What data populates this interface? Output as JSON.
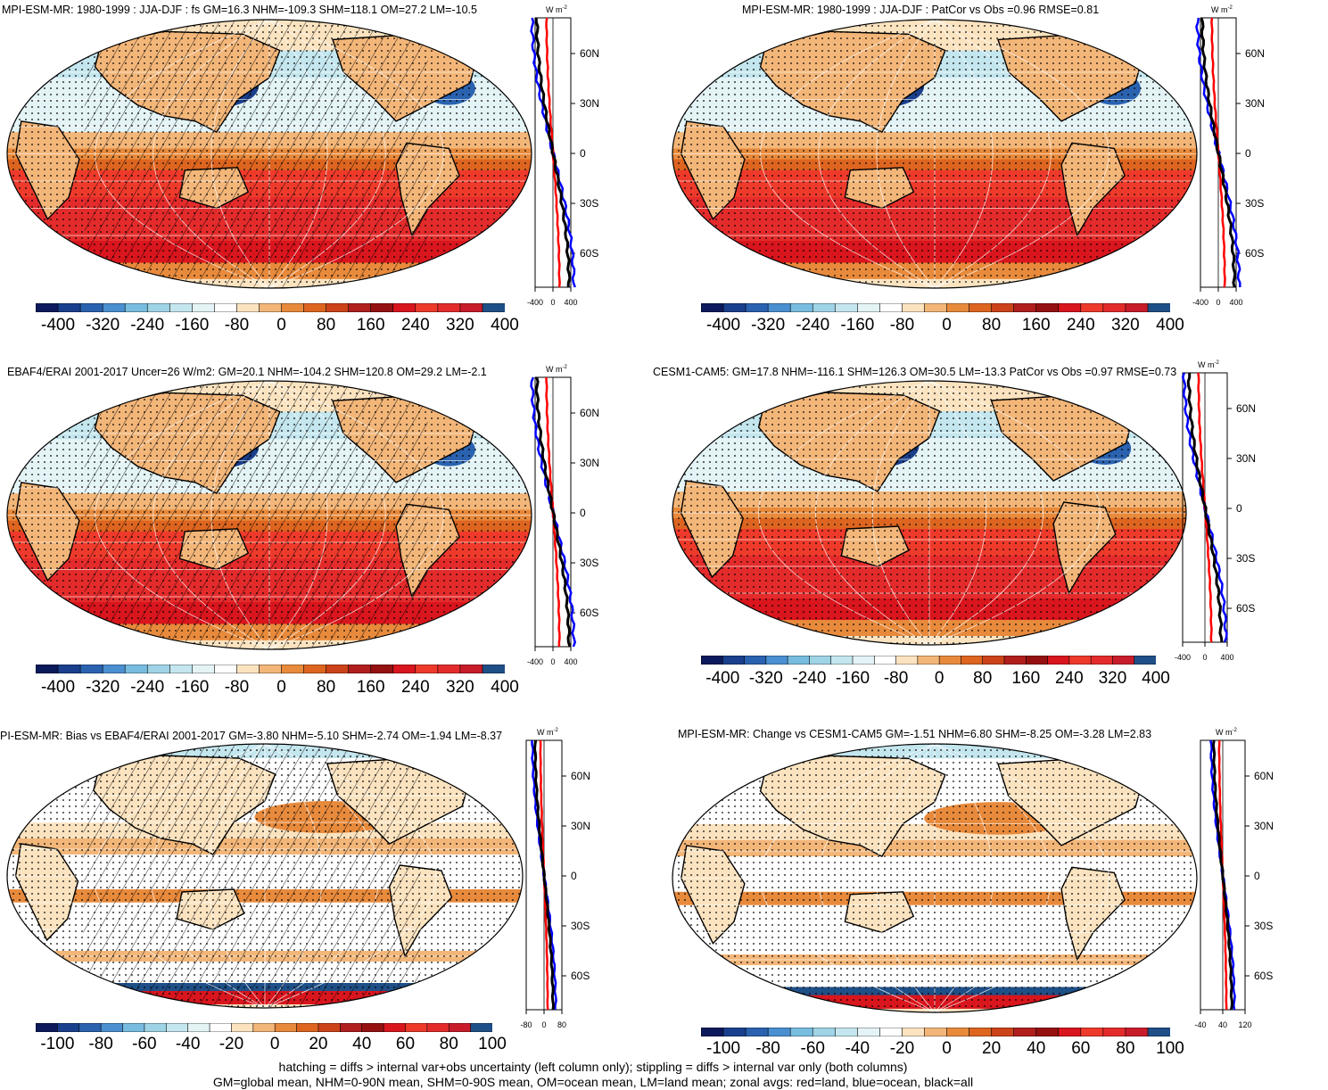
{
  "panels": [
    {
      "id": "p1",
      "title": "MPI-ESM-MR: 1980-1999 : JJA-DJF : fs GM=16.3 NHM=-109.3 SHM=118.1 OM=27.2 LM=-10.5",
      "scale": "big",
      "hatching": true,
      "zonal_ticks": [
        "-400",
        "0",
        "400"
      ]
    },
    {
      "id": "p2",
      "title": "MPI-ESM-MR: 1980-1999 : JJA-DJF : PatCor vs Obs =0.96 RMSE=0.81",
      "scale": "big",
      "hatching": false,
      "zonal_ticks": [
        "-400",
        "0",
        "400"
      ]
    },
    {
      "id": "p3",
      "title": "EBAF4/ERAI 2001-2017 Uncer=26 W/m2: GM=20.1 NHM=-104.2 SHM=120.8 OM=29.2 LM=-2.1",
      "scale": "big",
      "hatching": true,
      "zonal_ticks": [
        "-400",
        "0",
        "400"
      ]
    },
    {
      "id": "p4",
      "title": "CESM1-CAM5: GM=17.8 NHM=-116.1 SHM=126.3 OM=30.5 LM=-13.3 PatCor vs Obs =0.97 RMSE=0.73",
      "scale": "big",
      "hatching": false,
      "zonal_ticks": [
        "-400",
        "0",
        "400"
      ]
    },
    {
      "id": "p5",
      "title": "PI-ESM-MR: Bias vs EBAF4/ERAI 2001-2017 GM=-3.80 NHM=-5.10 SHM=-2.74 OM=-1.94 LM=-8.37",
      "scale": "small",
      "hatching": true,
      "zonal_ticks": [
        "-80",
        "0",
        "80"
      ]
    },
    {
      "id": "p6",
      "title": "MPI-ESM-MR: Change vs CESM1-CAM5 GM=-1.51 NHM=6.80 SHM=-8.25 OM=-3.28 LM=2.83",
      "scale": "small",
      "hatching": false,
      "zonal_ticks": [
        "-40",
        "40",
        "120"
      ]
    }
  ],
  "units_label": "W m",
  "units_exp": "-2",
  "lat_labels": [
    "60N",
    "30N",
    "0",
    "30S",
    "60S"
  ],
  "colorbar_big": [
    "-400",
    "-320",
    "-240",
    "-160",
    "-80",
    "0",
    "80",
    "160",
    "240",
    "320",
    "400"
  ],
  "colorbar_small": [
    "-100",
    "-80",
    "-60",
    "-40",
    "-20",
    "0",
    "20",
    "40",
    "60",
    "80",
    "100"
  ],
  "colorbar_colors": [
    "#0c1a5c",
    "#1a3f8c",
    "#2a62b0",
    "#4a8fd0",
    "#78bde0",
    "#9fd3e6",
    "#c4e6ee",
    "#e3f3f6",
    "#ffffff",
    "#fbe3c0",
    "#f3b679",
    "#e88a3c",
    "#dd6520",
    "#cc4319",
    "#b01e1e",
    "#951111",
    "#d9151d",
    "#ee3a2b",
    "#e42b2b",
    "#c81c2a",
    "#1f4f87"
  ],
  "zonal_series_colors": {
    "land": "#ff0000",
    "ocean": "#0000ff",
    "all": "#000000"
  },
  "footer_lines": [
    "hatching = diffs > internal var+obs uncertainty (left column only); stippling = diffs > internal var only (both columns)",
    "GM=global mean, NHM=0-90N mean, SHM=0-90S mean, OM=ocean mean, LM=land mean; zonal avgs: red=land, blue=ocean, black=all"
  ]
}
